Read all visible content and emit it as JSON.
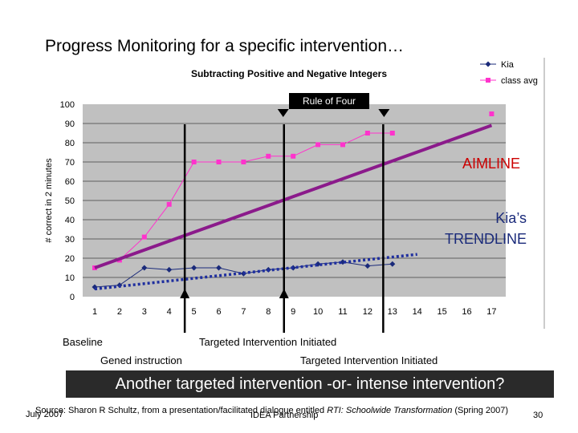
{
  "slide": {
    "title": "Progress Monitoring for a specific intervention…",
    "banner": "Another targeted intervention -or- intense intervention?",
    "labels": {
      "baseline": "Baseline",
      "gened": "Gened instruction",
      "targeted1": "Targeted Intervention Initiated",
      "targeted2": "Targeted Intervention Initiated",
      "rule_of_four": "Rule of Four",
      "aimline": "AIMLINE",
      "trendline_line1": "Kia’s",
      "trendline_line2": "TRENDLINE"
    },
    "footer": {
      "date": "July 2007",
      "source_prefix": "Source:  Sharon R Schultz, from a presentation/facilitated dialogue entitled ",
      "source_title": "RTI: Schoolwide Transformation",
      "source_suffix": " (Spring 2007)",
      "org": "IDEA Partnership",
      "page": "30"
    }
  },
  "chart_data": {
    "type": "line",
    "title": "Subtracting Positive and Negative Integers",
    "xlabel": "",
    "ylabel": "# correct in 2 minutes",
    "x": [
      1,
      2,
      3,
      4,
      5,
      6,
      7,
      8,
      9,
      10,
      11,
      12,
      13,
      14,
      15,
      16,
      17
    ],
    "ylim": [
      0,
      100
    ],
    "yticks": [
      0,
      10,
      20,
      30,
      40,
      50,
      60,
      70,
      80,
      90,
      100
    ],
    "grid": true,
    "legend_position": "top-right",
    "series": [
      {
        "name": "Kia",
        "color": "#1a2a7a",
        "marker": "diamond",
        "values": [
          5,
          6,
          15,
          14,
          15,
          15,
          12,
          14,
          15,
          17,
          18,
          16,
          17,
          null,
          null,
          null,
          null
        ]
      },
      {
        "name": "class avg",
        "color": "#ff33cc",
        "marker": "square",
        "values": [
          15,
          19,
          31,
          48,
          70,
          70,
          70,
          73,
          73,
          79,
          79,
          85,
          85,
          null,
          null,
          null,
          95
        ]
      }
    ],
    "aimline": {
      "color": "#8b1a8b",
      "from": [
        1,
        15
      ],
      "to": [
        17,
        89
      ]
    },
    "trendline": {
      "color": "#1f2f9f",
      "from": [
        1,
        4
      ],
      "to": [
        14,
        22
      ]
    },
    "intervention_lines_between": [
      [
        4,
        5
      ],
      [
        8,
        9
      ],
      [
        12,
        13
      ]
    ]
  }
}
